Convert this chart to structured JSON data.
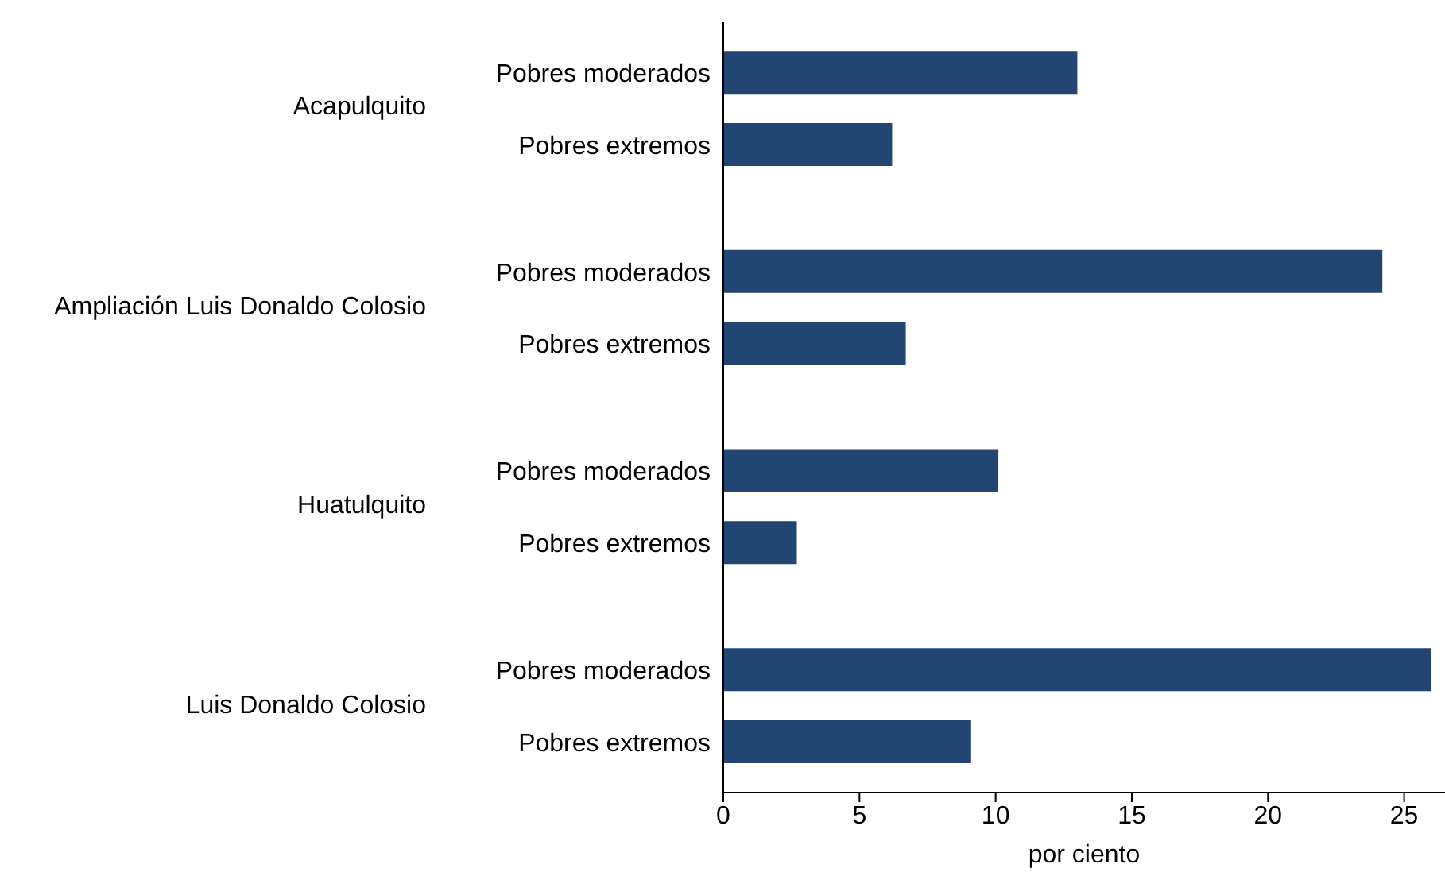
{
  "chart_data": {
    "type": "bar",
    "orientation": "horizontal",
    "xlabel": "por ciento",
    "categories": [
      "Pobres moderados",
      "Pobres extremos",
      "Pobres moderados",
      "Pobres extremos",
      "Pobres moderados",
      "Pobres extremos",
      "Pobres moderados",
      "Pobres extremos"
    ],
    "values": [
      13.0,
      6.2,
      24.2,
      6.7,
      10.1,
      2.7,
      26.0,
      9.1
    ],
    "color": "#234571",
    "annotations": [
      "Acapulquito",
      "Ampliación Luis Donaldo Colosio",
      "Huatulquito",
      "Luis Donaldo Colosio"
    ],
    "xlim": [
      0,
      26.5
    ],
    "xticks": [
      0,
      5,
      10,
      15,
      20,
      25
    ]
  }
}
